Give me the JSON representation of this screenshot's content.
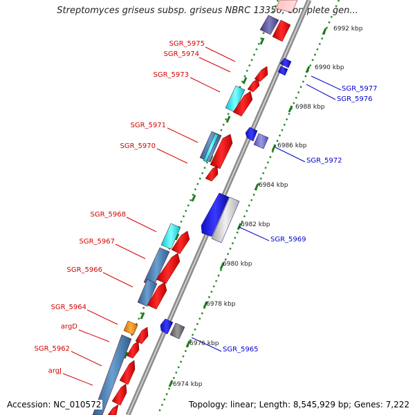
{
  "title": "Streptomyces griseus subsp. griseus NBRC 13350, complete gen...",
  "accession": "Accession: NC_010572",
  "topology": "Topology: linear; Length: 8,545,929 bp; Genes: 7,222",
  "ruler_labels": [
    "6992 kbp",
    "6990 kbp",
    "6988 kbp",
    "6986 kbp",
    "6984 kbp",
    "6982 kbp",
    "6980 kbp",
    "6978 kbp",
    "6976 kbp",
    "6974 kbp"
  ],
  "genes_left": [
    "SGR_5975",
    "SGR_5974",
    "SGR_5973",
    "SGR_5971",
    "SGR_5970",
    "SGR_5968",
    "SGR_5967",
    "SGR_5966",
    "SGR_5964",
    "argD",
    "SGR_5962",
    "argJ"
  ],
  "genes_right": [
    "SGR_5977",
    "SGR_5976",
    "SGR_5972",
    "SGR_5969",
    "SGR_5965"
  ],
  "colors": {
    "left_label": "#d40000",
    "right_label": "#0000cc",
    "ruler": "#2a8a2a",
    "backbone": "#8c8c8c"
  }
}
